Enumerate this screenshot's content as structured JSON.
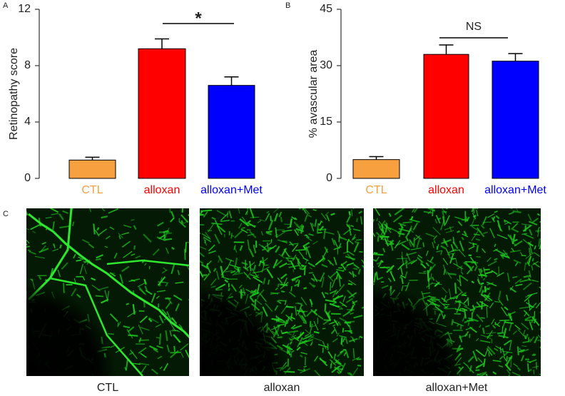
{
  "chart_data": [
    {
      "type": "bar",
      "panel_label": "A",
      "ylabel": "Retinopathy score",
      "categories": [
        "CTL",
        "alloxan",
        "alloxan+Met"
      ],
      "colors": [
        "#f7a040",
        "#ff0000",
        "#0000ff"
      ],
      "values": [
        1.3,
        9.2,
        6.6
      ],
      "errors": [
        0.2,
        0.7,
        0.6
      ],
      "ylim": [
        0,
        12
      ],
      "yticks": [
        0,
        4,
        8,
        12
      ],
      "annotation": "*"
    },
    {
      "type": "bar",
      "panel_label": "B",
      "ylabel": "% avascular area",
      "categories": [
        "CTL",
        "alloxan",
        "alloxan+Met"
      ],
      "colors": [
        "#f7a040",
        "#ff0000",
        "#0000ff"
      ],
      "values": [
        5.0,
        33.0,
        31.2
      ],
      "errors": [
        0.8,
        2.5,
        2.0
      ],
      "ylim": [
        0,
        45
      ],
      "yticks": [
        0,
        15,
        30,
        45
      ],
      "annotation": "NS"
    }
  ],
  "panel_c": {
    "panel_label": "C",
    "captions": [
      "CTL",
      "alloxan",
      "alloxan+Met"
    ]
  }
}
